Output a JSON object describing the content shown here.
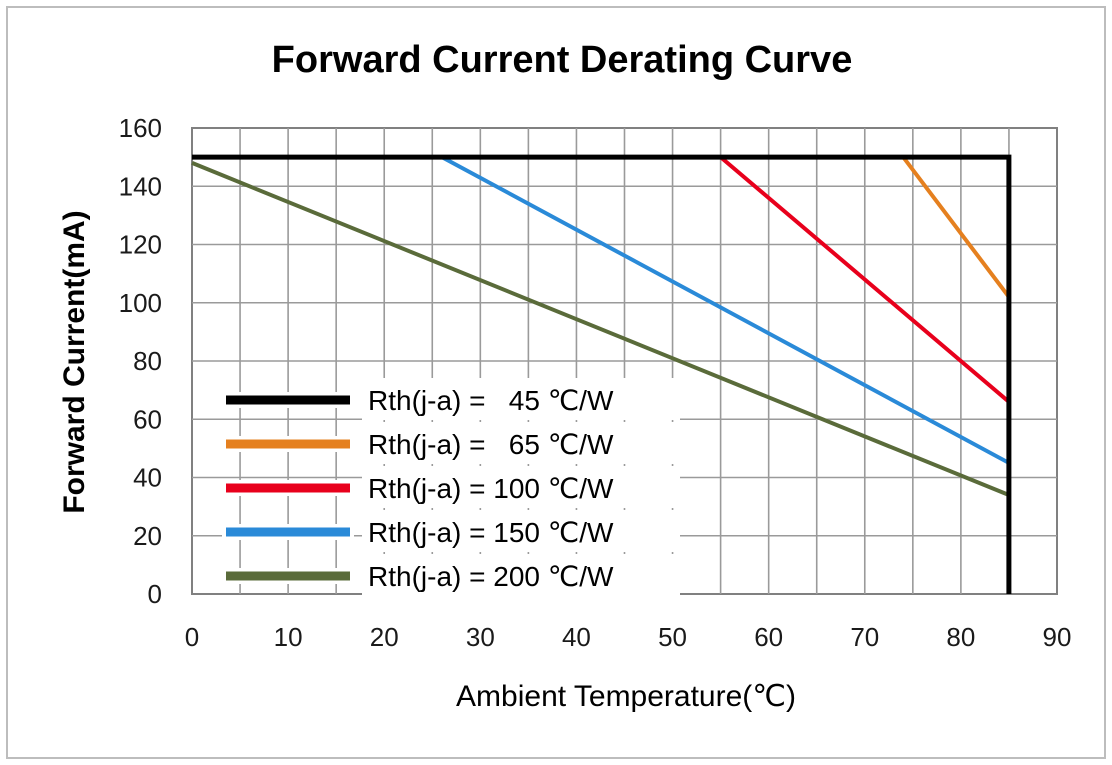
{
  "chart_data": {
    "type": "line",
    "title": "Forward Current Derating Curve",
    "xlabel": "Ambient Temperature(℃)",
    "ylabel": "Forward Current(mA)",
    "xlim": [
      0,
      90
    ],
    "ylim": [
      0,
      160
    ],
    "x_ticks": [
      "0",
      "10",
      "20",
      "30",
      "40",
      "50",
      "60",
      "70",
      "80",
      "90"
    ],
    "y_ticks": [
      "0",
      "20",
      "40",
      "60",
      "80",
      "100",
      "120",
      "140",
      "160"
    ],
    "grid": true,
    "legend_position": "bottom-left",
    "series": [
      {
        "name": "Rth(j-a) =   45 ℃/W",
        "color": "#000000",
        "points": [
          [
            0,
            150
          ],
          [
            85,
            150
          ],
          [
            85,
            0
          ]
        ]
      },
      {
        "name": "Rth(j-a) =   65 ℃/W",
        "color": "#e5801f",
        "points": [
          [
            0,
            150
          ],
          [
            74,
            150
          ],
          [
            85,
            102
          ],
          [
            85,
            0
          ]
        ]
      },
      {
        "name": "Rth(j-a) = 100 ℃/W",
        "color": "#e8001c",
        "points": [
          [
            0,
            150
          ],
          [
            55,
            150
          ],
          [
            85,
            66
          ],
          [
            85,
            0
          ]
        ]
      },
      {
        "name": "Rth(j-a) = 150 ℃/W",
        "color": "#2a8ad8",
        "points": [
          [
            0,
            150
          ],
          [
            26,
            150
          ],
          [
            85,
            45
          ],
          [
            85,
            0
          ]
        ]
      },
      {
        "name": "Rth(j-a) = 200 ℃/W",
        "color": "#5a6b3a",
        "points": [
          [
            0,
            148
          ],
          [
            85,
            34
          ],
          [
            85,
            0
          ]
        ]
      }
    ]
  }
}
